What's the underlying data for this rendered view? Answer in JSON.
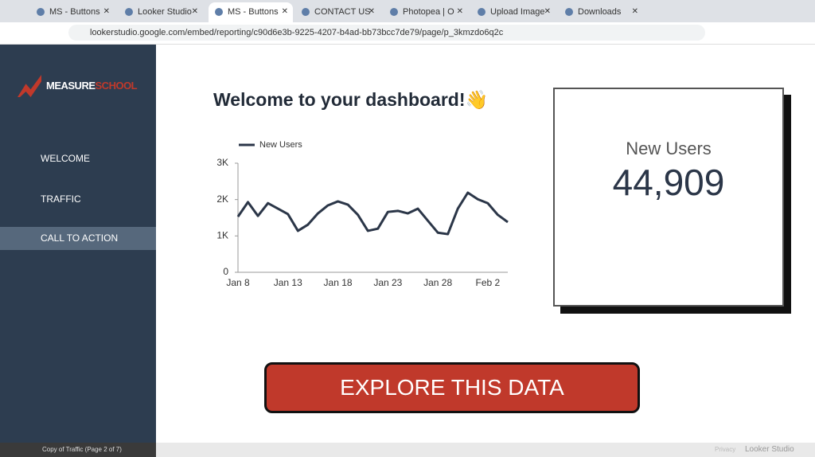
{
  "browser": {
    "tabs": [
      "MS - Buttons",
      "Looker Studio",
      "MS - Buttons",
      "CONTACT US",
      "Photopea | O",
      "Upload Image",
      "Downloads"
    ],
    "url": "lookerstudio.google.com/embed/reporting/c90d6e3b-9225-4207-b4ad-bb73bcc7de79/page/p_3kmzdo6q2c"
  },
  "sidebar": {
    "logo": [
      "MEASURE",
      "SCHOOL"
    ],
    "nav": [
      "WELCOME",
      "TRAFFIC",
      "CALL TO ACTION"
    ]
  },
  "title": "Welcome to your dashboard!👋",
  "chart_data": {
    "type": "line",
    "categories": [
      "Jan 8",
      null,
      null,
      null,
      null,
      "Jan 13",
      null,
      null,
      null,
      null,
      "Jan 18",
      null,
      null,
      null,
      null,
      "Jan 23",
      null,
      null,
      null,
      null,
      "Jan 28",
      null,
      null,
      null,
      null,
      "Feb 2",
      null,
      null
    ],
    "series": [
      {
        "name": "New Users",
        "color": "#2b3648",
        "values": [
          1530,
          1930,
          1550,
          1900,
          1750,
          1600,
          1140,
          1310,
          1620,
          1840,
          1950,
          1860,
          1580,
          1140,
          1200,
          1660,
          1690,
          1620,
          1750,
          1420,
          1090,
          1050,
          1750,
          2190,
          2010,
          1900,
          1580,
          1380
        ]
      }
    ],
    "ylim": [
      0,
      3000
    ],
    "yticks": [
      0,
      {
        "value": 1000,
        "label": "1K"
      },
      {
        "value": 2000,
        "label": "2K"
      },
      {
        "value": 3000,
        "label": "3K"
      }
    ]
  },
  "scorecard": {
    "label": "New Users",
    "value": "44,909"
  },
  "button": "EXPLORE THIS DATA",
  "footer": {
    "page": "Copy of Traffic (Page 2 of 7)",
    "privacy": "Privacy",
    "brand": "Looker Studio"
  }
}
